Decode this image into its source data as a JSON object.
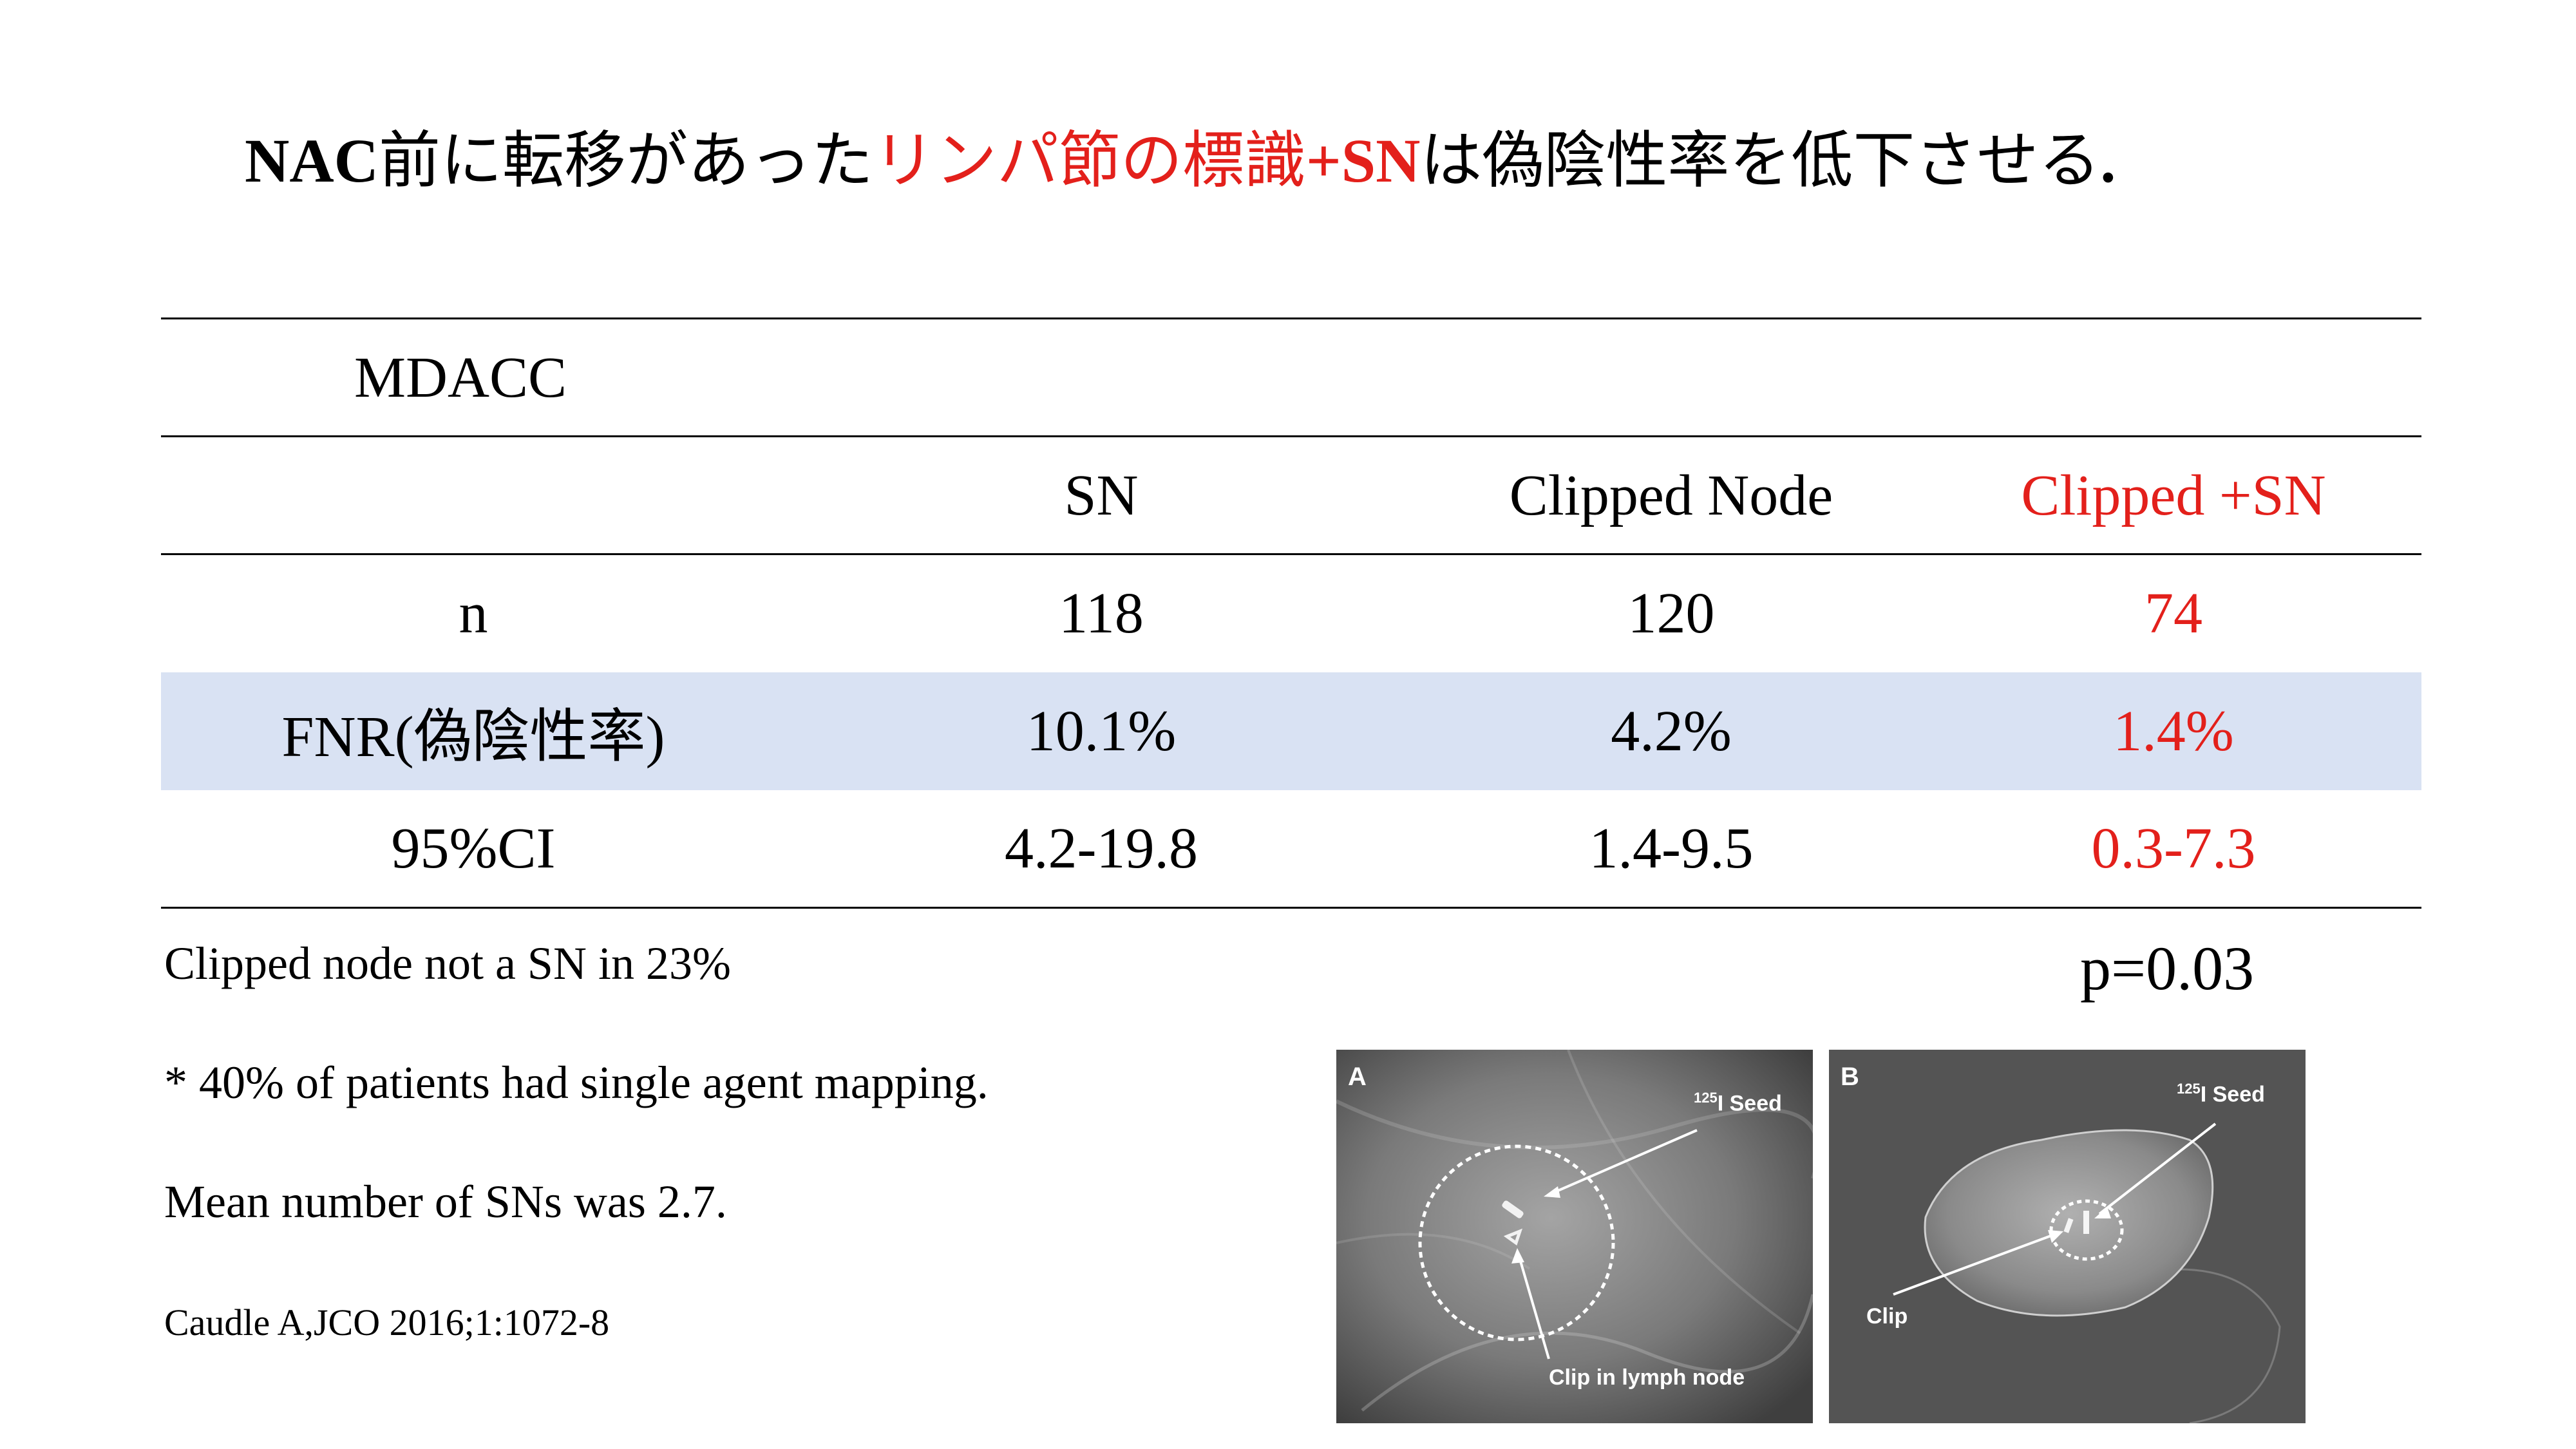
{
  "title": {
    "part1": "NAC",
    "part2": "前に転移があった",
    "part3": "リンパ節の標識",
    "part4": "+SN",
    "part5": "は偽陰性率を低下させる",
    "part6": "."
  },
  "table": {
    "section_label": "MDACC",
    "columns": [
      "SN",
      "Clipped Node",
      "Clipped +SN"
    ],
    "rows": [
      {
        "label": "n",
        "values": [
          "118",
          "120",
          "74"
        ]
      },
      {
        "label": "FNR(偽陰性率)",
        "values": [
          "10.1%",
          "4.2%",
          "1.4%"
        ]
      },
      {
        "label": "95%CI",
        "values": [
          "4.2-19.8",
          "1.4-9.5",
          "0.3-7.3"
        ]
      }
    ]
  },
  "notes": {
    "note1": "Clipped node not a SN in 23%",
    "note2": "* 40% of patients had single agent mapping.",
    "note3": "Mean number of SNs was 2.7."
  },
  "citation": "Caudle A,JCO 2016;1:1072-8",
  "p_value": "p=0.03",
  "figure": {
    "panel_a": {
      "letter": "A",
      "seed_sup": "125",
      "seed_label": "I Seed",
      "clip_label": "Clip in lymph node"
    },
    "panel_b": {
      "letter": "B",
      "seed_sup": "125",
      "seed_label": "I Seed",
      "clip_label": "Clip"
    }
  },
  "colors": {
    "highlight_red": "#e3201b",
    "row_shade": "#d9e2f3"
  }
}
